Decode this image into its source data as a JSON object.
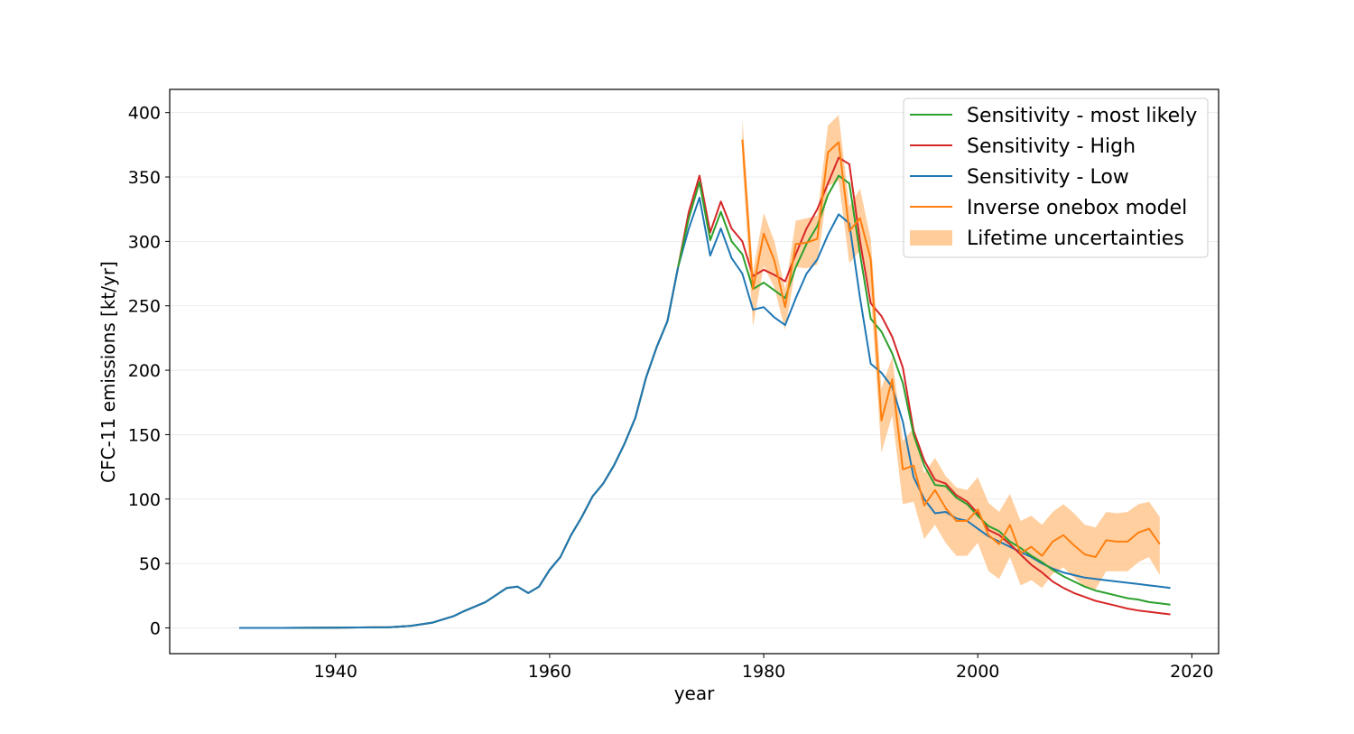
{
  "chart_data": {
    "type": "line",
    "xlabel": "year",
    "ylabel": "CFC-11 emissions [kt/yr]",
    "xlim": [
      1924.5,
      2022.5
    ],
    "ylim": [
      -20,
      418
    ],
    "xticks": [
      1940,
      1960,
      1980,
      2000,
      2020
    ],
    "yticks": [
      0,
      50,
      100,
      150,
      200,
      250,
      300,
      350,
      400
    ],
    "grid": "horizontal",
    "legend_position": "top-right",
    "legend": {
      "most_likely": "Sensitivity - most likely",
      "high": "Sensitivity - High",
      "low": "Sensitivity - Low",
      "inverse": "Inverse onebox model",
      "band": "Lifetime uncertainties"
    },
    "colors": {
      "most_likely": "#2ca02c",
      "high": "#d62728",
      "low": "#1f77b4",
      "inverse": "#ff7f0e",
      "band": "#ffbb78"
    },
    "base_series": {
      "x": [
        1931,
        1935,
        1940,
        1945,
        1947,
        1949,
        1951,
        1952,
        1954,
        1956,
        1957,
        1958,
        1959,
        1960,
        1961,
        1962,
        1963,
        1964,
        1965,
        1966,
        1967,
        1968,
        1969,
        1970,
        1971,
        1972
      ],
      "values": [
        0,
        0,
        0.2,
        0.5,
        1.5,
        4,
        9,
        13,
        20,
        31,
        32,
        27,
        32,
        45,
        55,
        72,
        86,
        102,
        112,
        126,
        143,
        163,
        194,
        218,
        238,
        280
      ]
    },
    "series": [
      {
        "key": "most_likely",
        "x": [
          1973,
          1974,
          1975,
          1976,
          1977,
          1978,
          1979,
          1980,
          1981,
          1982,
          1983,
          1984,
          1985,
          1986,
          1987,
          1988,
          1989,
          1990,
          1991,
          1992,
          1993,
          1994,
          1995,
          1996,
          1997,
          1998,
          1999,
          2000,
          2001,
          2002,
          2003,
          2004,
          2005,
          2006,
          2007,
          2008,
          2009,
          2010,
          2011,
          2012,
          2013,
          2014,
          2015,
          2016,
          2017,
          2018
        ],
        "values": [
          318,
          346,
          301,
          323,
          300,
          290,
          263,
          268,
          262,
          256,
          280,
          298,
          312,
          336,
          351,
          345,
          290,
          240,
          230,
          213,
          190,
          150,
          126,
          111,
          110,
          101,
          96,
          87,
          79,
          75,
          67,
          62,
          56,
          51,
          45,
          40,
          36,
          32,
          29,
          27,
          25,
          23,
          22,
          20,
          19,
          18
        ]
      },
      {
        "key": "high",
        "x": [
          1973,
          1974,
          1975,
          1976,
          1977,
          1978,
          1979,
          1980,
          1981,
          1982,
          1983,
          1984,
          1985,
          1986,
          1987,
          1988,
          1989,
          1990,
          1991,
          1992,
          1993,
          1994,
          1995,
          1996,
          1997,
          1998,
          1999,
          2000,
          2001,
          2002,
          2003,
          2004,
          2005,
          2006,
          2007,
          2008,
          2009,
          2010,
          2011,
          2012,
          2013,
          2014,
          2015,
          2016,
          2017,
          2018
        ],
        "values": [
          323,
          351,
          307,
          331,
          310,
          300,
          273,
          278,
          274,
          269,
          290,
          310,
          325,
          345,
          365,
          360,
          300,
          252,
          242,
          226,
          202,
          153,
          130,
          115,
          112,
          103,
          98,
          89,
          76,
          72,
          65,
          57,
          49,
          43,
          36,
          31,
          27,
          24,
          21,
          19,
          17,
          15,
          13.5,
          12.5,
          11.5,
          10.5
        ]
      },
      {
        "key": "low",
        "x": [
          1973,
          1974,
          1975,
          1976,
          1977,
          1978,
          1979,
          1980,
          1981,
          1982,
          1983,
          1984,
          1985,
          1986,
          1987,
          1988,
          1989,
          1990,
          1991,
          1992,
          1993,
          1994,
          1995,
          1996,
          1997,
          1998,
          1999,
          2000,
          2001,
          2002,
          2003,
          2004,
          2005,
          2006,
          2007,
          2008,
          2009,
          2010,
          2011,
          2012,
          2013,
          2014,
          2015,
          2016,
          2017,
          2018
        ],
        "values": [
          310,
          334,
          289,
          310,
          287,
          275,
          247,
          249,
          241,
          235,
          256,
          275,
          286,
          305,
          321,
          314,
          256,
          205,
          198,
          187,
          160,
          117,
          100,
          89,
          90,
          85,
          83,
          77,
          71,
          67,
          63,
          59,
          55,
          50,
          46,
          43,
          41,
          39,
          38,
          37,
          36,
          35,
          34,
          33,
          32,
          31
        ]
      },
      {
        "key": "inverse",
        "x": [
          1978,
          1979,
          1980,
          1981,
          1982,
          1983,
          1984,
          1985,
          1986,
          1987,
          1988,
          1989,
          1990,
          1991,
          1992,
          1993,
          1994,
          1995,
          1996,
          1997,
          1998,
          1999,
          2000,
          2001,
          2002,
          2003,
          2004,
          2005,
          2006,
          2007,
          2008,
          2009,
          2010,
          2011,
          2012,
          2013,
          2014,
          2015,
          2016,
          2017
        ],
        "values": [
          379,
          263,
          306,
          285,
          249,
          298,
          299,
          302,
          369,
          377,
          308,
          318,
          286,
          161,
          193,
          123,
          126,
          95,
          107,
          93,
          83,
          83,
          92,
          72,
          65,
          80,
          58,
          63,
          56,
          67,
          72,
          64,
          57,
          55,
          68,
          67,
          67,
          74,
          77,
          65
        ]
      }
    ],
    "band": {
      "key": "band",
      "x": [
        1978,
        1979,
        1980,
        1981,
        1982,
        1983,
        1984,
        1985,
        1986,
        1987,
        1988,
        1989,
        1990,
        1991,
        1992,
        1993,
        1994,
        1995,
        1996,
        1997,
        1998,
        1999,
        2000,
        2001,
        2002,
        2003,
        2004,
        2005,
        2006,
        2007,
        2008,
        2009,
        2010,
        2011,
        2012,
        2013,
        2014,
        2015,
        2016,
        2017
      ],
      "upper": [
        395,
        277,
        322,
        300,
        263,
        316,
        318,
        320,
        390,
        398,
        327,
        341,
        302,
        186,
        210,
        145,
        155,
        120,
        132,
        118,
        109,
        107,
        117,
        97,
        90,
        104,
        83,
        87,
        80,
        90,
        96,
        89,
        80,
        78,
        90,
        89,
        90,
        96,
        98,
        86
      ],
      "lower": [
        363,
        234,
        281,
        264,
        231,
        280,
        279,
        282,
        343,
        347,
        283,
        293,
        260,
        136,
        165,
        96,
        98,
        69,
        80,
        66,
        56,
        56,
        66,
        44,
        38,
        55,
        33,
        37,
        31,
        42,
        47,
        39,
        32,
        30,
        44,
        44,
        44,
        51,
        55,
        41
      ]
    }
  }
}
